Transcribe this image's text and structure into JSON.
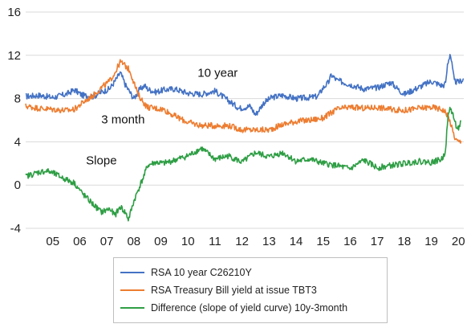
{
  "chart_data": {
    "type": "line",
    "title": "",
    "xlabel": "",
    "ylabel": "",
    "ylim": [
      -4,
      16
    ],
    "y_ticks": [
      "-4",
      "0",
      "4",
      "8",
      "12",
      "16"
    ],
    "xlim": [
      2004.5,
      2020.7
    ],
    "x_tick_labels": [
      "05",
      "06",
      "07",
      "08",
      "09",
      "10",
      "11",
      "12",
      "13",
      "14",
      "15",
      "16",
      "17",
      "18",
      "19",
      "20"
    ],
    "grid": "horizontal",
    "legend_position": "bottom",
    "annotations": [
      {
        "text": "10 year",
        "x": 2011.6,
        "y": 10.0
      },
      {
        "text": "3 month",
        "x": 2008.1,
        "y": 5.7
      },
      {
        "text": "Slope",
        "x": 2007.3,
        "y": 1.9
      }
    ],
    "series": [
      {
        "name": "RSA 10 year C26210Y",
        "color": "#4472C4",
        "x": [
          2004.5,
          2005.0,
          2005.5,
          2006.0,
          2006.3,
          2006.6,
          2007.0,
          2007.3,
          2007.6,
          2007.8,
          2008.0,
          2008.2,
          2008.35,
          2008.5,
          2008.7,
          2008.9,
          2009.0,
          2009.3,
          2009.6,
          2010.0,
          2010.5,
          2011.0,
          2011.5,
          2012.0,
          2012.4,
          2012.8,
          2013.0,
          2013.3,
          2013.6,
          2014.0,
          2014.5,
          2015.0,
          2015.3,
          2015.5,
          2015.7,
          2015.8,
          2016.0,
          2016.5,
          2017.0,
          2017.5,
          2018.0,
          2018.3,
          2018.5,
          2019.0,
          2019.5,
          2019.9,
          2020.0,
          2020.05,
          2020.1,
          2020.2,
          2020.35,
          2020.5,
          2020.7
        ],
        "values": [
          8.2,
          8.3,
          8.1,
          8.4,
          8.8,
          8.3,
          8.2,
          8.6,
          8.9,
          9.6,
          10.4,
          9.2,
          8.6,
          8.0,
          8.8,
          9.2,
          8.9,
          8.6,
          8.8,
          8.9,
          8.5,
          8.4,
          8.7,
          7.8,
          7.1,
          7.3,
          6.5,
          7.6,
          8.1,
          8.3,
          8.0,
          8.1,
          8.2,
          9.0,
          9.5,
          10.2,
          9.7,
          9.3,
          8.9,
          9.0,
          9.5,
          8.8,
          8.4,
          9.0,
          9.6,
          9.2,
          9.3,
          9.8,
          11.2,
          12.2,
          9.6,
          9.5,
          9.8
        ]
      },
      {
        "name": "RSA Treasury Bill yield at issue TBT3",
        "color": "#ED7D31",
        "x": [
          2004.5,
          2005.0,
          2005.5,
          2006.0,
          2006.3,
          2006.6,
          2007.0,
          2007.3,
          2007.6,
          2007.8,
          2008.0,
          2008.2,
          2008.35,
          2008.5,
          2008.65,
          2008.9,
          2009.0,
          2009.3,
          2009.6,
          2010.0,
          2010.5,
          2011.0,
          2011.5,
          2012.0,
          2012.5,
          2013.0,
          2013.5,
          2014.0,
          2014.5,
          2015.0,
          2015.5,
          2016.0,
          2016.5,
          2017.0,
          2017.5,
          2018.0,
          2018.5,
          2019.0,
          2019.5,
          2019.9,
          2020.0,
          2020.1,
          2020.2,
          2020.3,
          2020.4,
          2020.5,
          2020.6
        ],
        "values": [
          7.3,
          7.1,
          7.0,
          6.9,
          7.0,
          7.6,
          8.3,
          9.0,
          9.6,
          10.4,
          11.4,
          11.0,
          10.6,
          9.5,
          8.4,
          7.5,
          7.2,
          7.1,
          7.0,
          6.4,
          5.8,
          5.5,
          5.5,
          5.5,
          5.1,
          5.1,
          5.1,
          5.6,
          5.9,
          6.0,
          6.2,
          7.0,
          7.2,
          7.1,
          7.2,
          7.0,
          6.9,
          7.1,
          7.2,
          7.0,
          6.8,
          6.5,
          5.8,
          4.9,
          4.2,
          4.0,
          4.0
        ]
      },
      {
        "name": "Difference (slope of yield curve) 10y-3month",
        "color": "#2E9E44",
        "x": [
          2004.5,
          2005.0,
          2005.3,
          2005.6,
          2006.0,
          2006.3,
          2006.6,
          2007.0,
          2007.3,
          2007.6,
          2007.8,
          2008.0,
          2008.2,
          2008.3,
          2008.5,
          2008.7,
          2008.9,
          2009.0,
          2009.3,
          2009.6,
          2010.0,
          2010.5,
          2011.0,
          2011.5,
          2012.0,
          2012.5,
          2013.0,
          2013.5,
          2014.0,
          2014.5,
          2015.0,
          2015.5,
          2016.0,
          2016.5,
          2017.0,
          2017.5,
          2018.0,
          2018.5,
          2019.0,
          2019.5,
          2019.9,
          2020.0,
          2020.05,
          2020.1,
          2020.2,
          2020.3,
          2020.4,
          2020.5,
          2020.6
        ],
        "values": [
          0.8,
          1.2,
          1.3,
          1.0,
          0.5,
          0.2,
          -0.8,
          -1.8,
          -2.5,
          -2.2,
          -2.8,
          -2.0,
          -2.6,
          -3.2,
          -1.5,
          -0.2,
          1.0,
          1.8,
          2.1,
          2.0,
          2.3,
          2.7,
          3.4,
          2.4,
          2.7,
          2.1,
          3.0,
          2.6,
          3.0,
          2.2,
          2.4,
          2.0,
          1.8,
          1.5,
          2.3,
          1.6,
          1.8,
          2.0,
          2.2,
          2.1,
          2.4,
          3.0,
          4.0,
          6.0,
          7.2,
          6.5,
          5.6,
          5.2,
          5.8
        ]
      }
    ]
  }
}
